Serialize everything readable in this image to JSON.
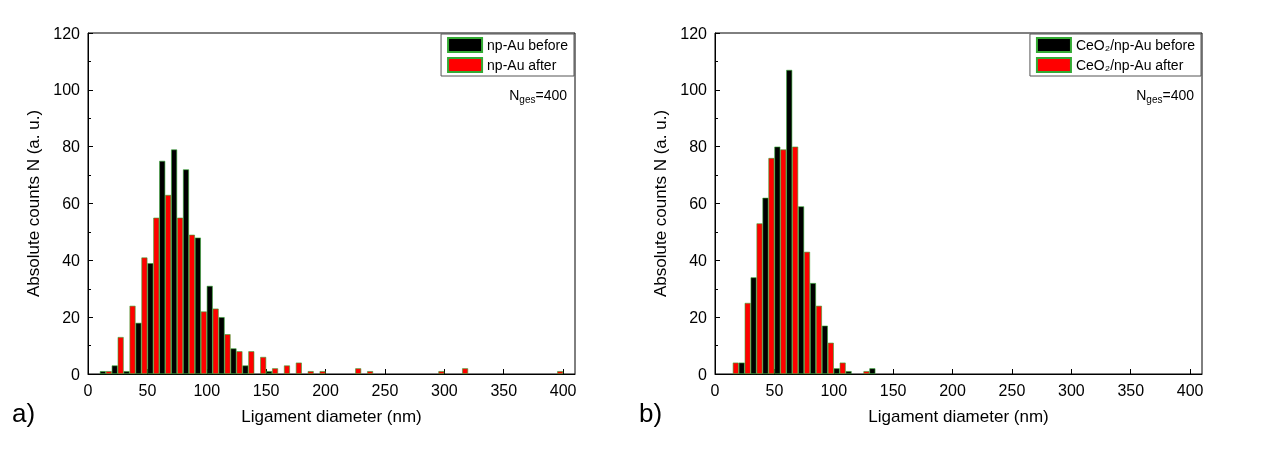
{
  "chart_data": [
    {
      "type": "bar",
      "xlabel": "Ligament diameter (nm)",
      "ylabel": "Absolute counts N (a. u.)",
      "xlim": [
        0,
        410
      ],
      "xticks": [
        0,
        50,
        100,
        150,
        200,
        250,
        300,
        350,
        400
      ],
      "ylim": [
        0,
        120
      ],
      "yticks": [
        0,
        20,
        40,
        60,
        80,
        100,
        120
      ],
      "grid": false,
      "legend": "top right",
      "annotations": [
        "a)",
        "N$_{ges}$=400"
      ],
      "series": [
        {
          "name": "np-Au before",
          "color": "#000000",
          "x": [
            12.5,
            22.5,
            32.5,
            42.5,
            52.5,
            62.5,
            72.5,
            82.5,
            92.5,
            102.5,
            112.5,
            122.5,
            132.5,
            152.5
          ],
          "values": [
            1,
            3,
            1,
            18,
            39,
            75,
            79,
            72,
            48,
            31,
            20,
            9,
            3,
            1
          ]
        },
        {
          "name": "np-Au after",
          "color": "#ff0000",
          "x": [
            17.5,
            27.5,
            37.5,
            47.5,
            57.5,
            67.5,
            77.5,
            87.5,
            97.5,
            107.5,
            117.5,
            127.5,
            137.5,
            147.5,
            157.5,
            167.5,
            177.5,
            187.5,
            197.5,
            227.5,
            237.5,
            297.5,
            317.5,
            397.5
          ],
          "values": [
            1,
            13,
            24,
            41,
            55,
            63,
            55,
            49,
            22,
            23,
            14,
            8,
            8,
            6,
            2,
            3,
            4,
            1,
            1,
            2,
            1,
            1,
            2,
            1
          ]
        }
      ]
    },
    {
      "type": "bar",
      "xlabel": "Ligament diameter (nm)",
      "ylabel": "Absolute counts N (a. u.)",
      "xlim": [
        0,
        410
      ],
      "xticks": [
        0,
        50,
        100,
        150,
        200,
        250,
        300,
        350,
        400
      ],
      "ylim": [
        0,
        120
      ],
      "yticks": [
        0,
        20,
        40,
        60,
        80,
        100,
        120
      ],
      "grid": false,
      "legend": "top right",
      "annotations": [
        "b)",
        "N$_{ges}$=400"
      ],
      "series": [
        {
          "name": "CeO₂/np-Au before",
          "color": "#000000",
          "x": [
            22.5,
            32.5,
            42.5,
            52.5,
            62.5,
            72.5,
            82.5,
            92.5,
            102.5,
            112.5,
            132.5
          ],
          "values": [
            4,
            34,
            62,
            80,
            107,
            59,
            32,
            17,
            2,
            1,
            2
          ]
        },
        {
          "name": "CeO₂/np-Au after",
          "color": "#ff0000",
          "x": [
            17.5,
            27.5,
            37.5,
            47.5,
            57.5,
            67.5,
            77.5,
            87.5,
            97.5,
            107.5,
            127.5
          ],
          "values": [
            4,
            25,
            53,
            76,
            79,
            80,
            43,
            24,
            11,
            4,
            1
          ]
        }
      ]
    }
  ]
}
